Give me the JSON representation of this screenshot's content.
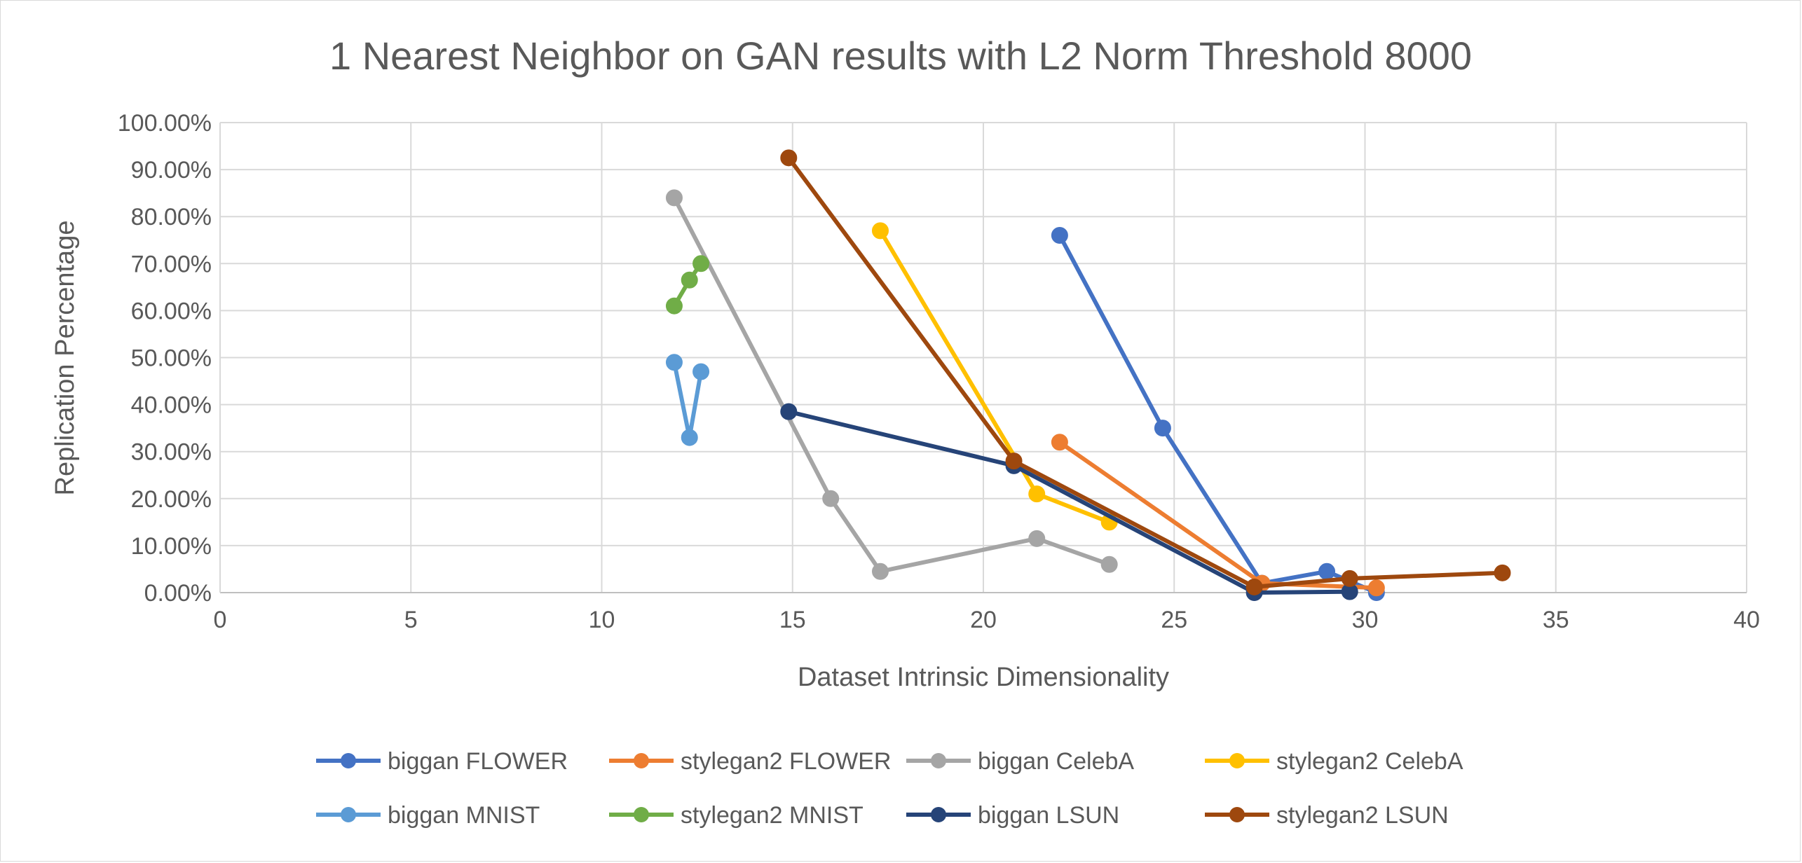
{
  "chart_data": {
    "type": "scatter",
    "title": "1 Nearest Neighbor on GAN results with L2 Norm Threshold 8000",
    "xlabel": "Dataset Intrinsic Dimensionality",
    "ylabel": "Replication Percentage",
    "xlim": [
      0,
      40
    ],
    "ylim": [
      0,
      1
    ],
    "x_ticks": [
      0,
      5,
      10,
      15,
      20,
      25,
      30,
      35,
      40
    ],
    "x_tick_labels": [
      "0",
      "5",
      "10",
      "15",
      "20",
      "25",
      "30",
      "35",
      "40"
    ],
    "y_ticks": [
      0,
      0.1,
      0.2,
      0.3,
      0.4,
      0.5,
      0.6,
      0.7,
      0.8,
      0.9,
      1.0
    ],
    "y_tick_labels": [
      "0.00%",
      "10.00%",
      "20.00%",
      "30.00%",
      "40.00%",
      "50.00%",
      "60.00%",
      "70.00%",
      "80.00%",
      "90.00%",
      "100.00%"
    ],
    "grid": true,
    "lines_with_markers": true,
    "legend_position": "bottom",
    "series": [
      {
        "name": "biggan FLOWER",
        "color": "#4472C4",
        "x": [
          22.0,
          24.7,
          27.3,
          29.0,
          30.3
        ],
        "y": [
          0.76,
          0.35,
          0.02,
          0.045,
          0.0
        ]
      },
      {
        "name": "stylegan2 FLOWER",
        "color": "#ED7D31",
        "x": [
          22.0,
          27.3,
          30.3
        ],
        "y": [
          0.32,
          0.02,
          0.01
        ]
      },
      {
        "name": "biggan CelebA",
        "color": "#A5A5A5",
        "x": [
          11.9,
          16.0,
          17.3,
          21.4,
          23.3
        ],
        "y": [
          0.84,
          0.2,
          0.045,
          0.115,
          0.06
        ]
      },
      {
        "name": "stylegan2 CelebA",
        "color": "#FFC000",
        "x": [
          17.3,
          21.4,
          23.3
        ],
        "y": [
          0.77,
          0.21,
          0.15
        ]
      },
      {
        "name": "biggan MNIST",
        "color": "#5B9BD5",
        "x": [
          11.9,
          12.3,
          12.6
        ],
        "y": [
          0.49,
          0.33,
          0.47
        ]
      },
      {
        "name": "stylegan2 MNIST",
        "color": "#70AD47",
        "x": [
          11.9,
          12.3,
          12.6
        ],
        "y": [
          0.61,
          0.665,
          0.7
        ]
      },
      {
        "name": "biggan LSUN",
        "color": "#264478",
        "x": [
          14.9,
          20.8,
          27.1,
          29.6
        ],
        "y": [
          0.385,
          0.27,
          0.0,
          0.002
        ]
      },
      {
        "name": "stylegan2 LSUN",
        "color": "#9E480E",
        "x": [
          14.9,
          20.8,
          27.1,
          29.6,
          33.6
        ],
        "y": [
          0.925,
          0.28,
          0.012,
          0.03,
          0.042
        ]
      }
    ]
  }
}
